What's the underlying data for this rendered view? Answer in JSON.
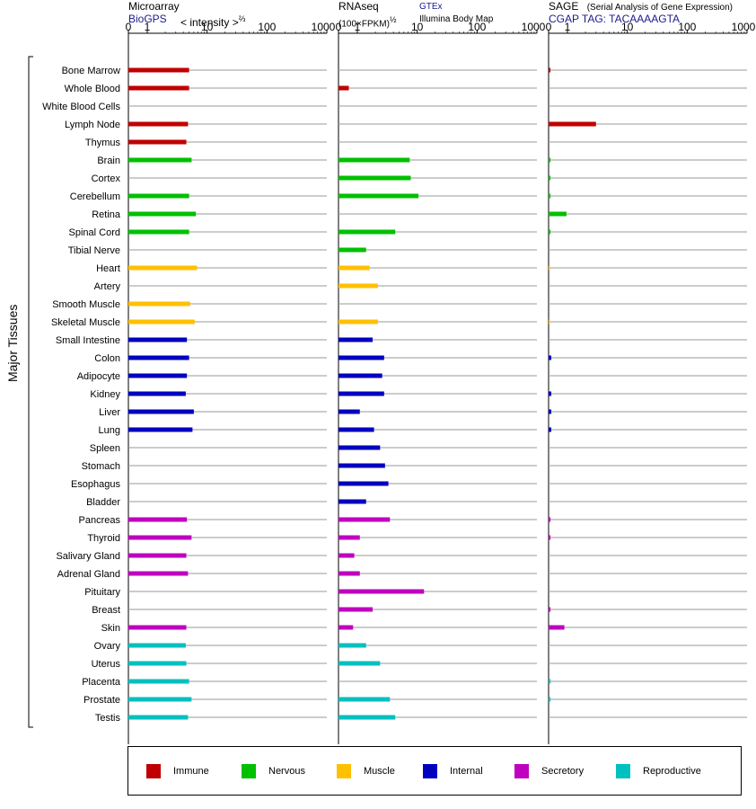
{
  "headers": {
    "micro": {
      "title": "Microarray",
      "sub": "BioGPS",
      "intensity": "< intensity >",
      "exp": "⅔"
    },
    "rna": {
      "title": "RNAseq",
      "sub": "(100×FPKM)",
      "exp": "½",
      "gtex": "GTEx",
      "illumina": "Illumina Body Map"
    },
    "sage": {
      "title": "SAGE",
      "note": "(Serial Analysis of Gene Expression)",
      "tag": "CGAP TAG: TACAAAAGTA"
    }
  },
  "side_label": "Major Tissues",
  "legend": [
    {
      "label": "Immune",
      "color": "#c00000"
    },
    {
      "label": "Nervous",
      "color": "#00c000"
    },
    {
      "label": "Muscle",
      "color": "#ffc000"
    },
    {
      "label": "Internal",
      "color": "#0000c0"
    },
    {
      "label": "Secretory",
      "color": "#c000c0"
    },
    {
      "label": "Reproductive",
      "color": "#00c0c0"
    }
  ],
  "chart_data": {
    "type": "bar",
    "orientation": "horizontal",
    "scale": "log",
    "tick_labels": [
      "0",
      "1",
      "10",
      "100",
      "1000"
    ],
    "tick_values": [
      0,
      1,
      10,
      100,
      1000
    ],
    "categories": [
      "Bone Marrow",
      "Whole Blood",
      "White Blood Cells",
      "Lymph Node",
      "Thymus",
      "Brain",
      "Cortex",
      "Cerebellum",
      "Retina",
      "Spinal Cord",
      "Tibial Nerve",
      "Heart",
      "Artery",
      "Smooth Muscle",
      "Skeletal Muscle",
      "Small Intestine",
      "Colon",
      "Adipocyte",
      "Kidney",
      "Liver",
      "Lung",
      "Spleen",
      "Stomach",
      "Esophagus",
      "Bladder",
      "Pancreas",
      "Thyroid",
      "Salivary Gland",
      "Adrenal Gland",
      "Pituitary",
      "Breast",
      "Skin",
      "Ovary",
      "Uterus",
      "Placenta",
      "Prostate",
      "Testis"
    ],
    "groups": [
      "Immune",
      "Immune",
      "Immune",
      "Immune",
      "Immune",
      "Nervous",
      "Nervous",
      "Nervous",
      "Nervous",
      "Nervous",
      "Nervous",
      "Muscle",
      "Muscle",
      "Muscle",
      "Muscle",
      "Internal",
      "Internal",
      "Internal",
      "Internal",
      "Internal",
      "Internal",
      "Internal",
      "Internal",
      "Internal",
      "Internal",
      "Secretory",
      "Secretory",
      "Secretory",
      "Secretory",
      "Secretory",
      "Secretory",
      "Secretory",
      "Reproductive",
      "Reproductive",
      "Reproductive",
      "Reproductive",
      "Reproductive"
    ],
    "series": [
      {
        "name": "Microarray",
        "values": [
          5,
          5,
          null,
          4.8,
          4.5,
          5.5,
          null,
          5,
          6.5,
          5,
          null,
          6.8,
          null,
          5.2,
          6.2,
          4.6,
          5,
          4.6,
          4.4,
          6,
          5.7,
          null,
          null,
          null,
          null,
          4.6,
          5.5,
          4.5,
          4.8,
          null,
          null,
          4.5,
          4.4,
          4.5,
          5,
          5.5,
          4.8
        ]
      },
      {
        "name": "RNAseq",
        "values": [
          null,
          0.3,
          null,
          null,
          null,
          7.5,
          7.8,
          10.5,
          null,
          4.3,
          1.4,
          1.6,
          2.2,
          null,
          2.2,
          1.8,
          2.8,
          2.6,
          2.8,
          1.1,
          1.9,
          2.4,
          2.9,
          3.3,
          1.4,
          3.5,
          1.1,
          0.7,
          1.1,
          13,
          1.8,
          0.6,
          1.4,
          2.4,
          null,
          3.5,
          4.3
        ]
      },
      {
        "name": "SAGE",
        "values": [
          0.01,
          null,
          null,
          3,
          null,
          0.01,
          0.01,
          0.01,
          0.9,
          0.01,
          null,
          0.005,
          null,
          null,
          0.005,
          null,
          0.02,
          null,
          0.02,
          0.02,
          0.02,
          null,
          null,
          null,
          null,
          0.01,
          0.01,
          null,
          null,
          null,
          0.01,
          0.7,
          null,
          null,
          0.01,
          0.01,
          null
        ]
      }
    ]
  }
}
